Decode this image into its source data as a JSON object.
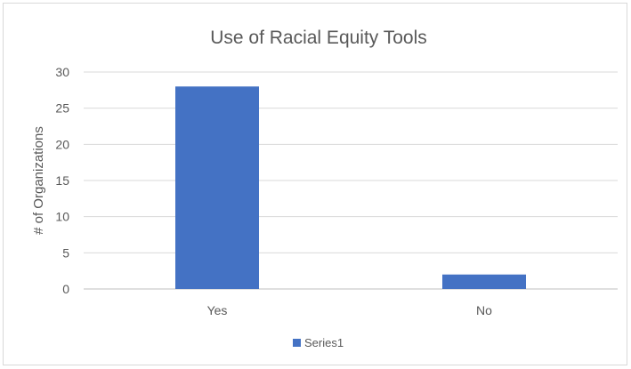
{
  "chart_data": {
    "type": "bar",
    "title": "Use of Racial Equity Tools",
    "xlabel": "",
    "ylabel": "# of Organizations",
    "categories": [
      "Yes",
      "No"
    ],
    "series": [
      {
        "name": "Series1",
        "values": [
          28,
          2
        ],
        "color": "#4472c4"
      }
    ],
    "ylim": [
      0,
      30
    ],
    "yticks": [
      0,
      5,
      10,
      15,
      20,
      25,
      30
    ],
    "grid": true,
    "legend": "bottom"
  }
}
